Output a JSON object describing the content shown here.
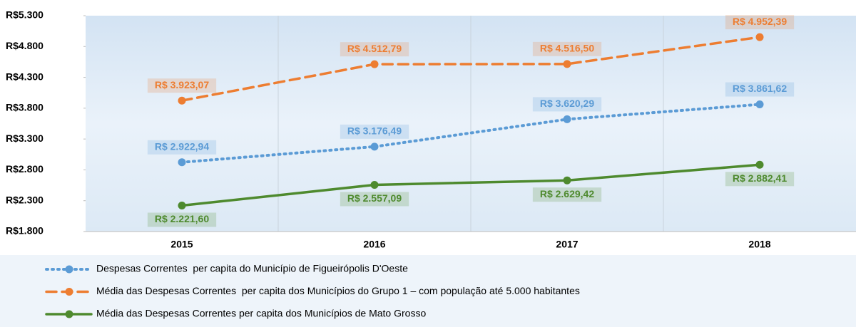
{
  "chart_data": {
    "type": "line",
    "categories": [
      "2015",
      "2016",
      "2017",
      "2018"
    ],
    "ylim": [
      1800,
      5300
    ],
    "yticks": [
      {
        "value": 1800,
        "label": "R$1.800"
      },
      {
        "value": 2300,
        "label": "R$2.300"
      },
      {
        "value": 2800,
        "label": "R$2.800"
      },
      {
        "value": 3300,
        "label": "R$3.300"
      },
      {
        "value": 3800,
        "label": "R$3.800"
      },
      {
        "value": 4300,
        "label": "R$4.300"
      },
      {
        "value": 4800,
        "label": "R$4.800"
      },
      {
        "value": 5300,
        "label": "R$5.300"
      }
    ],
    "series": [
      {
        "name": "Despesas Correntes  per capita do Município de Figueirópolis D'Oeste",
        "color": "#5b9bd5",
        "line_style": "dotted",
        "values": [
          2922.94,
          3176.49,
          3620.29,
          3861.62
        ],
        "value_labels": [
          "R$ 2.922,94",
          "R$ 3.176,49",
          "R$ 3.620,29",
          "R$ 3.861,62"
        ]
      },
      {
        "name": "Média das Despesas Correntes  per capita dos Municípios do Grupo 1 – com população até 5.000 habitantes",
        "color": "#ed7d31",
        "line_style": "dashed",
        "values": [
          3923.07,
          4512.79,
          4516.5,
          4952.39
        ],
        "value_labels": [
          "R$ 3.923,07",
          "R$ 4.512,79",
          "R$ 4.516,50",
          "R$ 4.952,39"
        ]
      },
      {
        "name": "Média das Despesas Correntes per capita dos Municípios de Mato Grosso",
        "color": "#4e8a2e",
        "line_style": "solid",
        "values": [
          2221.6,
          2557.09,
          2629.42,
          2882.41
        ],
        "value_labels": [
          "R$ 2.221,60",
          "R$ 2.557,09",
          "R$ 2.629,42",
          "R$ 2.882,41"
        ]
      }
    ]
  }
}
